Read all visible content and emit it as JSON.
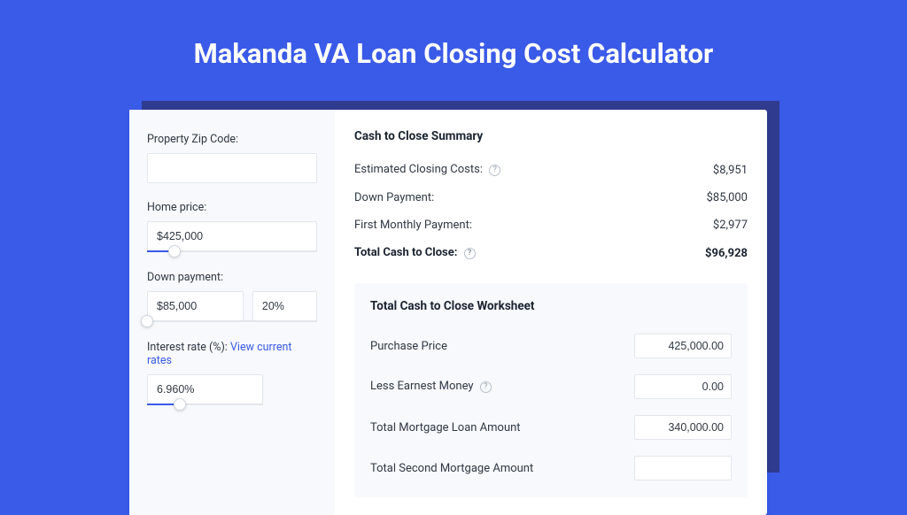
{
  "colors": {
    "page_bg": "#3a5ae8",
    "card_bg": "#ffffff",
    "sidebar_bg": "#f7f9fc",
    "worksheet_bg": "#f7f9fc",
    "shadow_bg": "#2f3b8f",
    "border": "#e2e6ec",
    "text_primary": "#1b2330",
    "text_body": "#303844",
    "link": "#3a5ae8",
    "slider_fill": "#3a5ae8"
  },
  "title": "Makanda VA Loan Closing Cost Calculator",
  "sidebar": {
    "zip_label": "Property Zip Code:",
    "zip_value": "",
    "home_price_label": "Home price:",
    "home_price_value": "$425,000",
    "home_price_slider_pct": 16,
    "down_payment_label": "Down payment:",
    "down_payment_value": "$85,000",
    "down_payment_pct_value": "20%",
    "down_payment_slider_pct": 0,
    "interest_label": "Interest rate (%):",
    "interest_link": "View current rates",
    "interest_value": "6.960%",
    "interest_slider_pct": 28
  },
  "summary": {
    "title": "Cash to Close Summary",
    "rows": [
      {
        "label": "Estimated Closing Costs:",
        "help": true,
        "value": "$8,951",
        "bold": false
      },
      {
        "label": "Down Payment:",
        "help": false,
        "value": "$85,000",
        "bold": false
      },
      {
        "label": "First Monthly Payment:",
        "help": false,
        "value": "$2,977",
        "bold": false
      },
      {
        "label": "Total Cash to Close:",
        "help": true,
        "value": "$96,928",
        "bold": true
      }
    ]
  },
  "worksheet": {
    "title": "Total Cash to Close Worksheet",
    "rows": [
      {
        "label": "Purchase Price",
        "help": false,
        "value": "425,000.00"
      },
      {
        "label": "Less Earnest Money",
        "help": true,
        "value": "0.00"
      },
      {
        "label": "Total Mortgage Loan Amount",
        "help": false,
        "value": "340,000.00"
      },
      {
        "label": "Total Second Mortgage Amount",
        "help": false,
        "value": ""
      }
    ]
  }
}
